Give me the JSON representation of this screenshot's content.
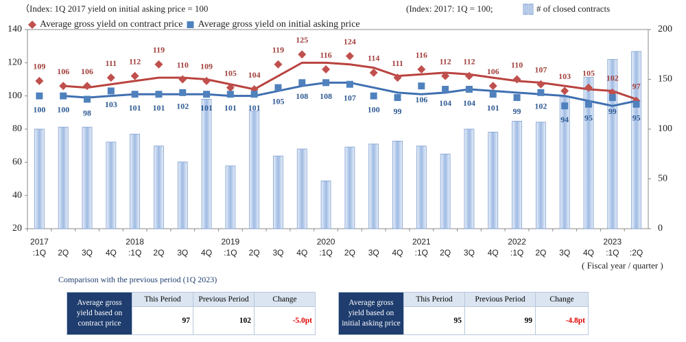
{
  "chart_data": {
    "type": "bar-line",
    "annotations": [
      "（Index: 1Q 2017 yield on initial asking price = 100",
      "(Index: 2017: 1Q = 100;",
      "# of closed contracts)",
      "( Fiscal year / quarter )"
    ],
    "categories": [
      ":1Q",
      "2Q",
      "3Q",
      "4Q",
      ":1Q",
      "2Q",
      "3Q",
      "4Q",
      ":1Q",
      "2Q",
      "3Q",
      "4Q",
      ":1Q",
      "2Q",
      "3Q",
      "4Q",
      ":1Q",
      "2Q",
      "3Q",
      "4Q",
      ":1Q",
      "2Q",
      "3Q",
      "4Q",
      ":1Q",
      ":2Q"
    ],
    "year_labels": [
      "2017",
      null,
      null,
      null,
      "2018",
      null,
      null,
      null,
      "2019",
      null,
      null,
      null,
      "2020",
      null,
      null,
      null,
      "2021",
      null,
      null,
      null,
      "2022",
      null,
      null,
      null,
      "2023",
      null
    ],
    "ylim": [
      20,
      140
    ],
    "yticks": [
      20,
      40,
      60,
      80,
      100,
      120,
      140
    ],
    "y2lim": [
      0,
      200
    ],
    "y2ticks": [
      0,
      50,
      100,
      150,
      200
    ],
    "series": [
      {
        "name": "Average gross yield on contract price",
        "marker": "diamond",
        "color": "#c0504d",
        "line_color": "#b9433f",
        "values": [
          109,
          106,
          106,
          111,
          112,
          119,
          110,
          109,
          105,
          104,
          119,
          125,
          116,
          124,
          114,
          111,
          116,
          112,
          112,
          106,
          110,
          107,
          103,
          105,
          102,
          97
        ],
        "trend_values": [
          null,
          106,
          105,
          107,
          109,
          111,
          111,
          110,
          107,
          104,
          112,
          120,
          120,
          119,
          117,
          112,
          113,
          114,
          113,
          111,
          109,
          108,
          106,
          104,
          103,
          98
        ]
      },
      {
        "name": "Average gross yield on initial asking price",
        "marker": "square",
        "color": "#4f81bd",
        "line_color": "#3f6fb0",
        "values": [
          100,
          100,
          98,
          103,
          101,
          101,
          102,
          101,
          101,
          101,
          105,
          108,
          108,
          107,
          100,
          99,
          106,
          104,
          104,
          101,
          99,
          102,
          94,
          95,
          99,
          95
        ],
        "trend_values": [
          null,
          100,
          99,
          100,
          101,
          101,
          101,
          101,
          100,
          100,
          103,
          106,
          108,
          108,
          105,
          102,
          101,
          102,
          104,
          103,
          102,
          101,
          100,
          97,
          94,
          97
        ]
      },
      {
        "name": "# of closed contracts",
        "axis": "y2",
        "color": "#bcd0ec",
        "values": [
          100,
          102,
          102,
          87,
          95,
          83,
          67,
          130,
          63,
          118,
          73,
          80,
          48,
          82,
          85,
          88,
          83,
          75,
          100,
          97,
          108,
          107,
          132,
          152,
          170,
          178
        ]
      }
    ]
  },
  "comparison": {
    "title": "Comparison with the previous period (1Q 2023)",
    "columns": [
      "This Period",
      "Previous Period",
      "Change"
    ],
    "tables": [
      {
        "row_header": "Average gross yield based on contract price",
        "values": [
          "97",
          "102",
          "-5.0pt"
        ]
      },
      {
        "row_header": "Average gross yield based on initial asking price",
        "values": [
          "95",
          "99",
          "-4.8pt"
        ]
      }
    ]
  }
}
